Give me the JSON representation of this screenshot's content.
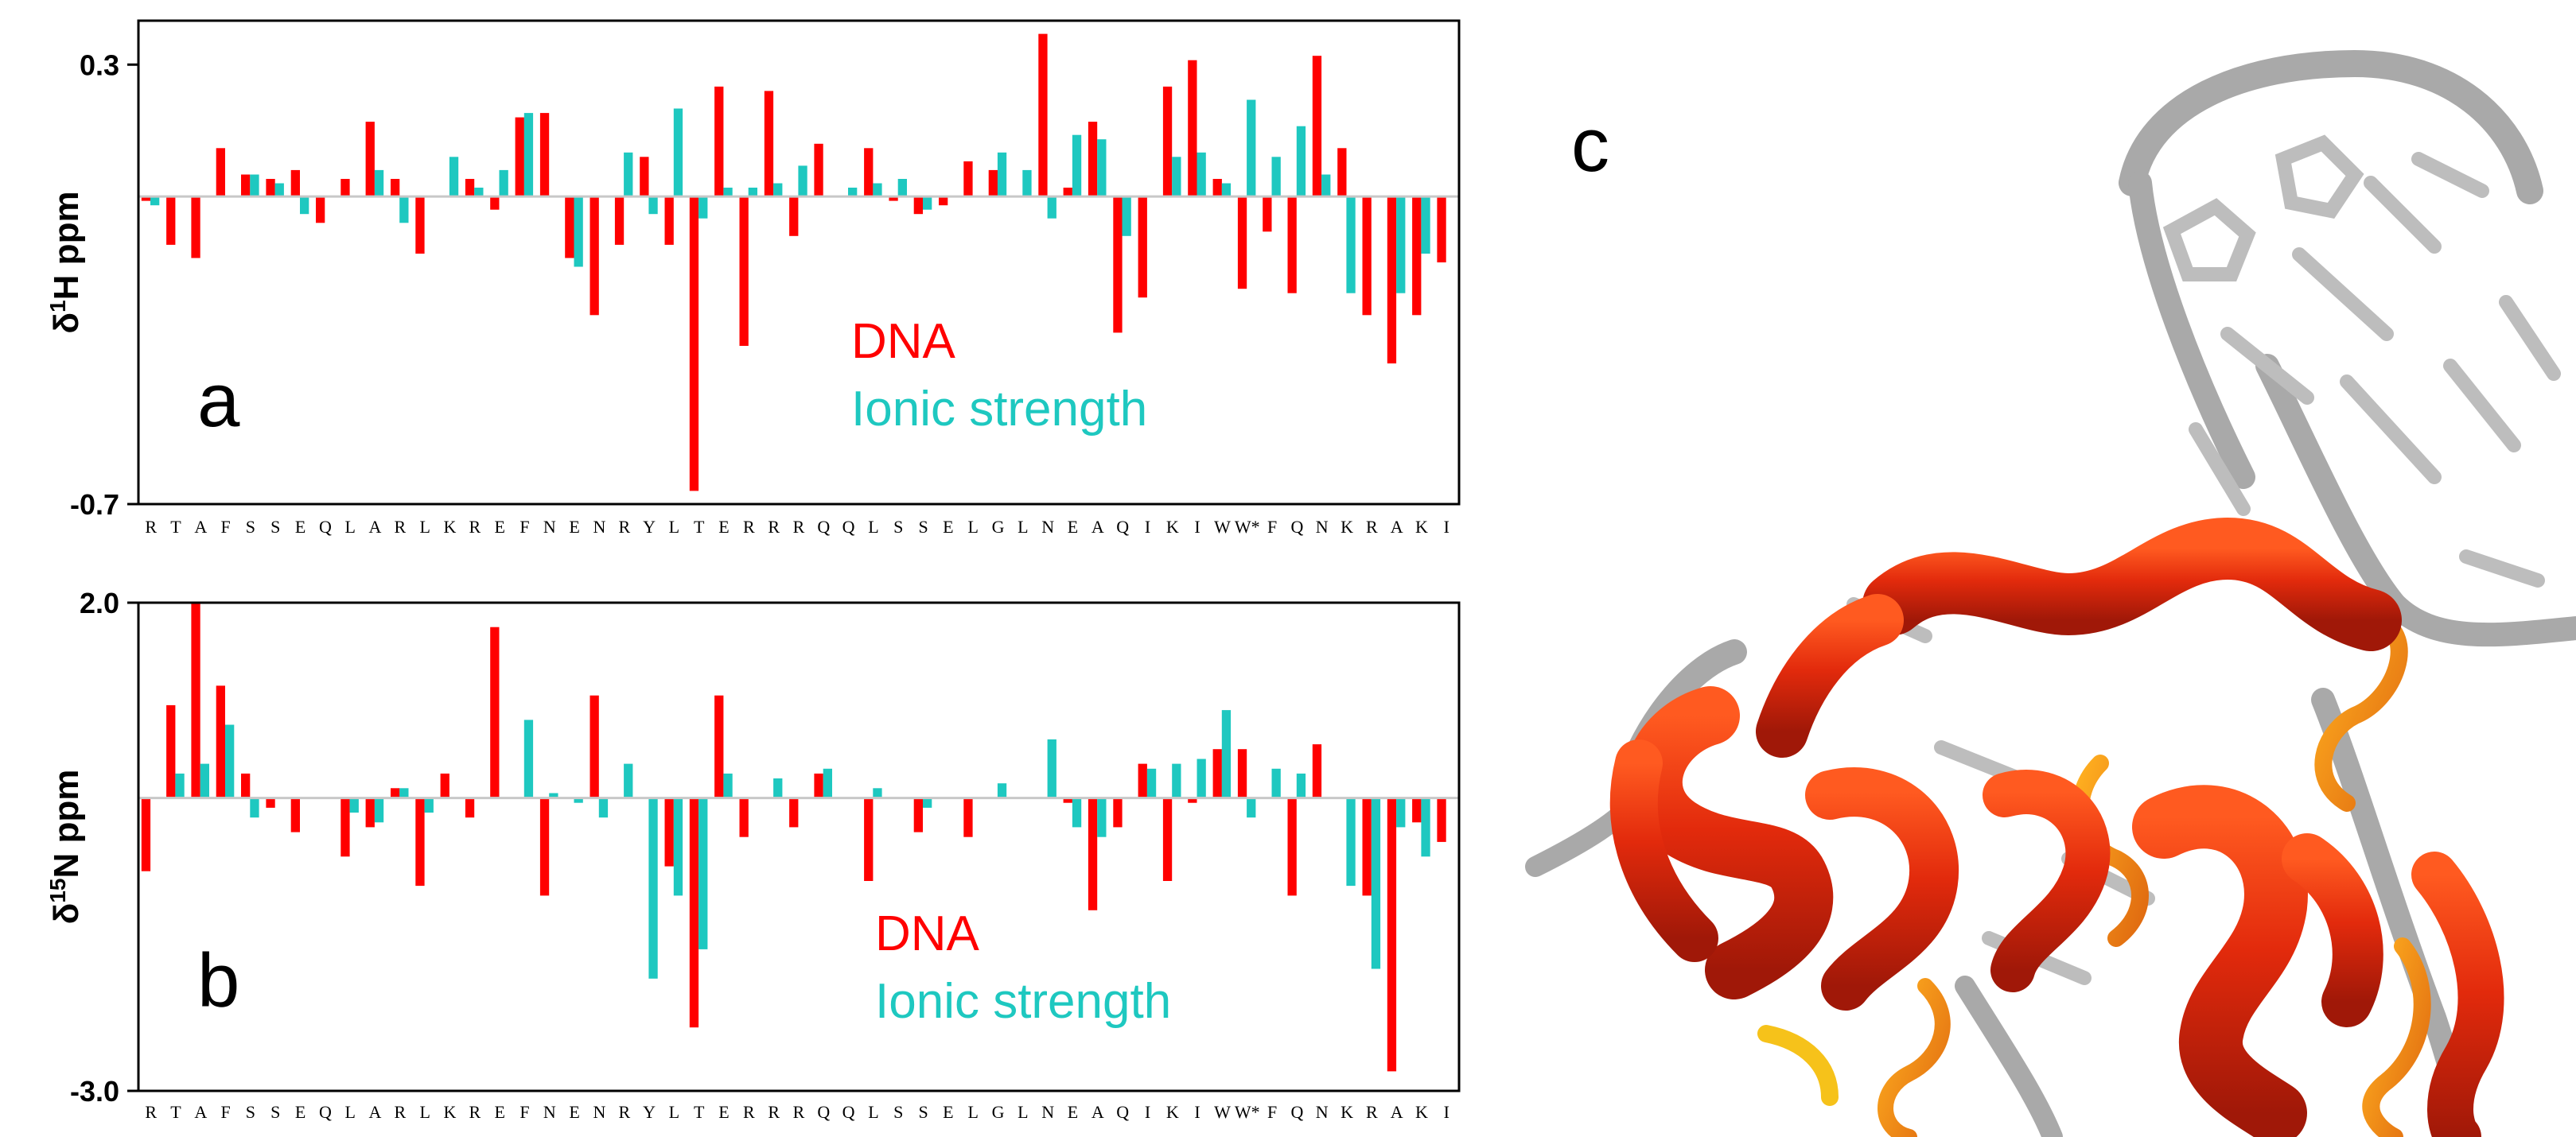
{
  "residues": [
    "R",
    "T",
    "A",
    "F",
    "S",
    "S",
    "E",
    "Q",
    "L",
    "A",
    "R",
    "L",
    "K",
    "R",
    "E",
    "F",
    "N",
    "E",
    "N",
    "R",
    "Y",
    "L",
    "T",
    "E",
    "R",
    "R",
    "R",
    "Q",
    "Q",
    "L",
    "S",
    "S",
    "E",
    "L",
    "G",
    "L",
    "N",
    "E",
    "A",
    "Q",
    "I",
    "K",
    "I",
    "W",
    "W*",
    "F",
    "Q",
    "N",
    "K",
    "R",
    "A",
    "K",
    "I"
  ],
  "colors": {
    "dna": "#ff0000",
    "ionic": "#1ec8c0",
    "axis": "#000000",
    "zero_line": "#c8c8c8",
    "model_helix": "#e03010",
    "model_coil": "#f07810",
    "model_dna": "#a9a9a9"
  },
  "panel_c": {
    "letter": "c"
  },
  "chart_data": [
    {
      "type": "bar",
      "panel": "a",
      "ylabel_prefix": "δ",
      "ylabel_sup": "1",
      "ylabel_suffix": "H ppm",
      "ylim": [
        -0.7,
        0.4
      ],
      "yticks": [
        {
          "value": 0.3,
          "label": "0.3"
        },
        {
          "value": -0.7,
          "label": "-0.7"
        }
      ],
      "legend": [
        "DNA",
        "Ionic strength"
      ],
      "series": [
        {
          "name": "DNA",
          "values": [
            -0.01,
            -0.11,
            -0.14,
            0.11,
            0.05,
            0.04,
            0.06,
            -0.06,
            0.04,
            0.17,
            0.04,
            -0.13,
            0.0,
            0.04,
            -0.03,
            0.18,
            0.19,
            -0.14,
            -0.27,
            -0.11,
            0.09,
            -0.11,
            -0.67,
            0.25,
            -0.34,
            0.24,
            -0.09,
            0.12,
            0.0,
            0.11,
            -0.01,
            -0.04,
            -0.02,
            0.08,
            0.06,
            0.0,
            0.37,
            0.02,
            0.17,
            -0.31,
            -0.23,
            0.25,
            0.31,
            0.04,
            -0.21,
            -0.08,
            -0.22,
            0.32,
            0.11,
            -0.27,
            -0.38,
            -0.27,
            -0.15
          ]
        },
        {
          "name": "Ionic strength",
          "values": [
            -0.02,
            0.0,
            0.0,
            0.0,
            0.05,
            0.03,
            -0.04,
            0.0,
            0.0,
            0.06,
            -0.06,
            0.0,
            0.09,
            0.02,
            0.06,
            0.19,
            0.0,
            -0.16,
            0.0,
            0.1,
            -0.04,
            0.2,
            -0.05,
            0.02,
            0.02,
            0.03,
            0.07,
            0.0,
            0.02,
            0.03,
            0.04,
            -0.03,
            0.0,
            0.0,
            0.1,
            0.06,
            -0.05,
            0.14,
            0.13,
            -0.09,
            0.0,
            0.09,
            0.1,
            0.03,
            0.22,
            0.09,
            0.16,
            0.05,
            -0.22,
            0.0,
            -0.22,
            -0.13,
            0.0
          ]
        }
      ]
    },
    {
      "type": "bar",
      "panel": "b",
      "ylabel_prefix": "δ",
      "ylabel_sup": "15",
      "ylabel_suffix": "N ppm",
      "ylim": [
        -3.0,
        2.0
      ],
      "yticks": [
        {
          "value": 2.0,
          "label": "2.0"
        },
        {
          "value": -3.0,
          "label": "-3.0"
        }
      ],
      "legend": [
        "DNA",
        "Ionic strength"
      ],
      "series": [
        {
          "name": "DNA",
          "values": [
            -0.75,
            0.95,
            2.0,
            1.15,
            0.25,
            -0.1,
            -0.35,
            0.0,
            -0.6,
            -0.3,
            0.1,
            -0.9,
            0.25,
            -0.2,
            1.75,
            0.0,
            -1.0,
            0.0,
            1.05,
            0.0,
            0.0,
            -0.7,
            -2.35,
            1.05,
            -0.4,
            0.0,
            -0.3,
            0.25,
            0.0,
            -0.85,
            0.0,
            -0.35,
            0.0,
            -0.4,
            0.0,
            0.0,
            0.0,
            -0.05,
            -1.15,
            -0.3,
            0.35,
            -0.85,
            -0.05,
            0.5,
            0.5,
            0.0,
            -1.0,
            0.55,
            0.0,
            -1.0,
            -2.8,
            -0.25,
            -0.45
          ]
        },
        {
          "name": "Ionic strength",
          "values": [
            0.0,
            0.25,
            0.35,
            0.75,
            -0.2,
            0.0,
            0.0,
            0.0,
            -0.15,
            -0.25,
            0.1,
            -0.15,
            0.0,
            0.0,
            0.0,
            0.8,
            0.05,
            -0.05,
            -0.2,
            0.35,
            -1.85,
            -1.0,
            -1.55,
            0.25,
            0.0,
            0.2,
            0.0,
            0.3,
            0.0,
            0.1,
            0.0,
            -0.1,
            0.0,
            0.0,
            0.15,
            0.0,
            0.6,
            -0.3,
            -0.4,
            0.0,
            0.3,
            0.35,
            0.4,
            0.9,
            -0.2,
            0.3,
            0.25,
            0.0,
            -0.9,
            -1.75,
            -0.3,
            -0.6,
            0.0
          ]
        }
      ]
    }
  ]
}
